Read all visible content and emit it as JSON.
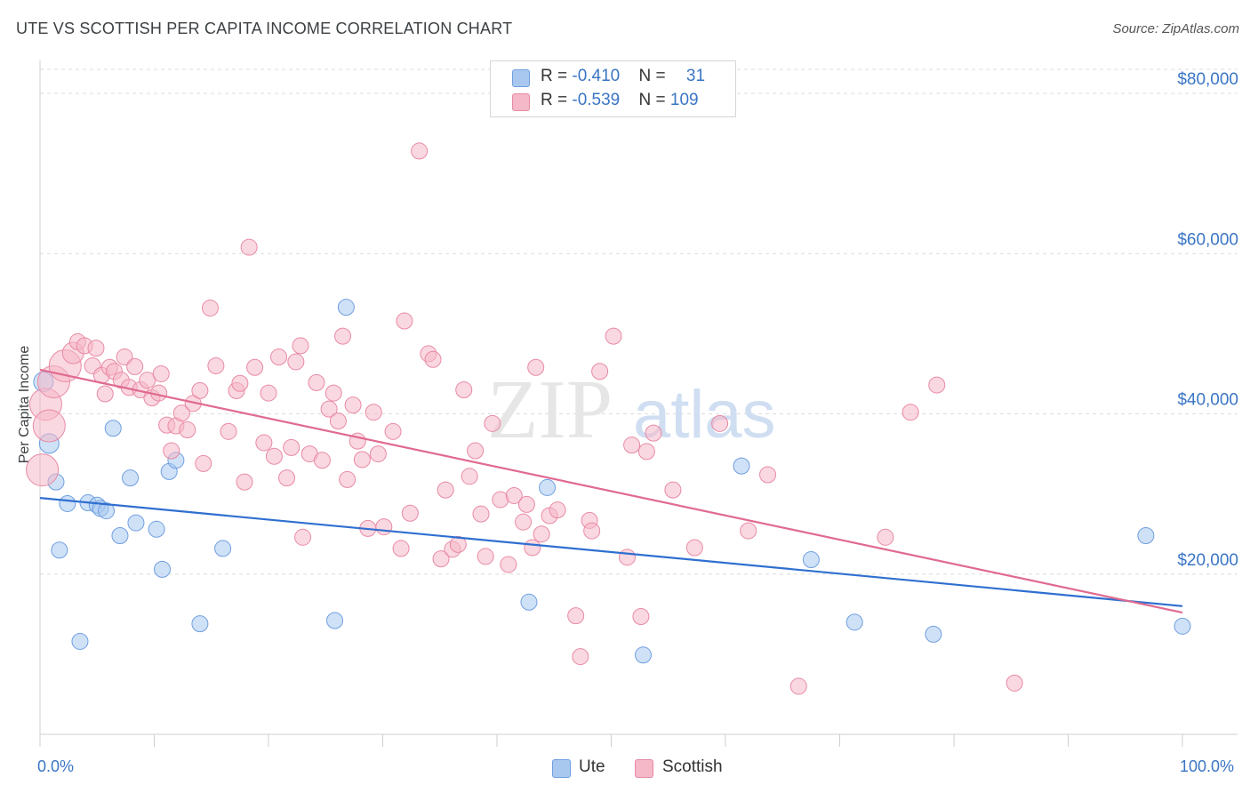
{
  "chart_data": {
    "type": "scatter",
    "title": "UTE VS SCOTTISH PER CAPITA INCOME CORRELATION CHART",
    "source": "Source: ZipAtlas.com",
    "watermark": "ZIPatlas",
    "ylabel": "Per Capita Income",
    "xlabel": "",
    "xlim": [
      0,
      100
    ],
    "ylim": [
      0,
      83000
    ],
    "x_tick_labels": [
      "0.0%",
      "100.0%"
    ],
    "y_ticks": [
      {
        "value": 20000,
        "label": "$20,000"
      },
      {
        "value": 40000,
        "label": "$40,000"
      },
      {
        "value": 60000,
        "label": "$60,000"
      },
      {
        "value": 80000,
        "label": "$80,000"
      }
    ],
    "grid": "horizontal dashed",
    "legend_top": [
      {
        "r_label": "R = ",
        "r_value": "-0.410",
        "n_label": "N = ",
        "n_value": "31",
        "color": "#a8c8f0"
      },
      {
        "r_label": "R = ",
        "r_value": "-0.539",
        "n_label": "N = ",
        "n_value": "109",
        "color": "#f5b8c8"
      }
    ],
    "series": [
      {
        "name": "Ute",
        "color": "#a8c8f0",
        "stroke": "#6f9fe0",
        "trend_color": "#2f6fd0",
        "trend": [
          [
            0,
            29500
          ],
          [
            100,
            16000
          ]
        ],
        "points": [
          [
            0.3,
            44000
          ],
          [
            0.8,
            36300
          ],
          [
            1.4,
            31500
          ],
          [
            1.7,
            23000
          ],
          [
            2.4,
            28800
          ],
          [
            3.5,
            11600
          ],
          [
            4.2,
            28900
          ],
          [
            5.0,
            28600
          ],
          [
            5.3,
            28200
          ],
          [
            5.8,
            27900
          ],
          [
            6.4,
            38200
          ],
          [
            7.0,
            24800
          ],
          [
            7.9,
            32000
          ],
          [
            8.4,
            26400
          ],
          [
            10.2,
            25600
          ],
          [
            10.7,
            20600
          ],
          [
            11.3,
            32800
          ],
          [
            11.9,
            34200
          ],
          [
            14.0,
            13800
          ],
          [
            16.0,
            23200
          ],
          [
            25.8,
            14200
          ],
          [
            26.8,
            53300
          ],
          [
            42.8,
            16500
          ],
          [
            44.4,
            30800
          ],
          [
            52.8,
            9900
          ],
          [
            61.4,
            33500
          ],
          [
            67.5,
            21800
          ],
          [
            71.3,
            14000
          ],
          [
            78.2,
            12500
          ],
          [
            96.8,
            24800
          ],
          [
            100.0,
            13500
          ]
        ]
      },
      {
        "name": "Scottish",
        "color": "#f5b8c8",
        "stroke": "#e88aa4",
        "trend_color": "#e06a90",
        "trend": [
          [
            0,
            45500
          ],
          [
            100,
            15200
          ]
        ],
        "points": [
          [
            0.2,
            33000
          ],
          [
            0.5,
            41200
          ],
          [
            0.8,
            38500
          ],
          [
            1.2,
            44000
          ],
          [
            2.2,
            46000
          ],
          [
            2.9,
            47600
          ],
          [
            3.3,
            49000
          ],
          [
            3.9,
            48500
          ],
          [
            4.6,
            46000
          ],
          [
            4.9,
            48200
          ],
          [
            5.4,
            44800
          ],
          [
            5.7,
            42500
          ],
          [
            6.1,
            45800
          ],
          [
            6.5,
            45300
          ],
          [
            7.1,
            44200
          ],
          [
            7.4,
            47100
          ],
          [
            7.8,
            43300
          ],
          [
            8.3,
            45900
          ],
          [
            8.8,
            43000
          ],
          [
            9.4,
            44200
          ],
          [
            9.8,
            42000
          ],
          [
            10.4,
            42600
          ],
          [
            10.6,
            45000
          ],
          [
            11.1,
            38600
          ],
          [
            11.5,
            35400
          ],
          [
            11.9,
            38500
          ],
          [
            12.4,
            40100
          ],
          [
            12.9,
            38000
          ],
          [
            13.4,
            41300
          ],
          [
            14.0,
            42900
          ],
          [
            14.3,
            33800
          ],
          [
            14.9,
            53200
          ],
          [
            15.4,
            46000
          ],
          [
            16.5,
            37800
          ],
          [
            17.2,
            42900
          ],
          [
            17.5,
            43800
          ],
          [
            17.9,
            31500
          ],
          [
            18.3,
            60800
          ],
          [
            18.8,
            45800
          ],
          [
            19.6,
            36400
          ],
          [
            20.0,
            42600
          ],
          [
            20.5,
            34700
          ],
          [
            20.9,
            47100
          ],
          [
            21.6,
            32000
          ],
          [
            22.0,
            35800
          ],
          [
            22.4,
            46500
          ],
          [
            22.8,
            48500
          ],
          [
            23.0,
            24600
          ],
          [
            23.6,
            35000
          ],
          [
            24.2,
            43900
          ],
          [
            24.7,
            34200
          ],
          [
            25.3,
            40600
          ],
          [
            25.7,
            42600
          ],
          [
            26.1,
            39100
          ],
          [
            26.5,
            49700
          ],
          [
            26.9,
            31800
          ],
          [
            27.4,
            41100
          ],
          [
            27.8,
            36600
          ],
          [
            28.2,
            34300
          ],
          [
            28.7,
            25700
          ],
          [
            29.2,
            40200
          ],
          [
            29.6,
            35000
          ],
          [
            30.1,
            25900
          ],
          [
            30.9,
            37800
          ],
          [
            31.6,
            23200
          ],
          [
            31.9,
            51600
          ],
          [
            32.4,
            27600
          ],
          [
            33.2,
            72800
          ],
          [
            34.0,
            47500
          ],
          [
            34.4,
            46800
          ],
          [
            35.1,
            21900
          ],
          [
            35.5,
            30500
          ],
          [
            36.1,
            23100
          ],
          [
            36.6,
            23700
          ],
          [
            37.1,
            43000
          ],
          [
            37.6,
            32200
          ],
          [
            38.1,
            35400
          ],
          [
            38.6,
            27500
          ],
          [
            39.0,
            22200
          ],
          [
            39.6,
            38800
          ],
          [
            40.3,
            29300
          ],
          [
            41.0,
            21200
          ],
          [
            41.5,
            29800
          ],
          [
            42.3,
            26500
          ],
          [
            42.6,
            28700
          ],
          [
            43.1,
            23300
          ],
          [
            43.4,
            45800
          ],
          [
            43.9,
            25000
          ],
          [
            44.6,
            27300
          ],
          [
            45.3,
            28000
          ],
          [
            46.9,
            14800
          ],
          [
            47.3,
            9700
          ],
          [
            48.1,
            26700
          ],
          [
            48.3,
            25400
          ],
          [
            49.0,
            45300
          ],
          [
            50.2,
            49700
          ],
          [
            51.4,
            22100
          ],
          [
            51.8,
            36100
          ],
          [
            52.6,
            14700
          ],
          [
            53.1,
            35300
          ],
          [
            53.7,
            37600
          ],
          [
            55.4,
            30500
          ],
          [
            57.3,
            23300
          ],
          [
            59.5,
            38800
          ],
          [
            62.0,
            25400
          ],
          [
            63.7,
            32400
          ],
          [
            66.4,
            6000
          ],
          [
            74.0,
            24600
          ],
          [
            76.2,
            40200
          ],
          [
            78.5,
            43600
          ],
          [
            85.3,
            6400
          ]
        ]
      }
    ]
  },
  "bottom_legend": [
    {
      "label": "Ute",
      "color": "#a8c8f0"
    },
    {
      "label": "Scottish",
      "color": "#f5b8c8"
    }
  ]
}
